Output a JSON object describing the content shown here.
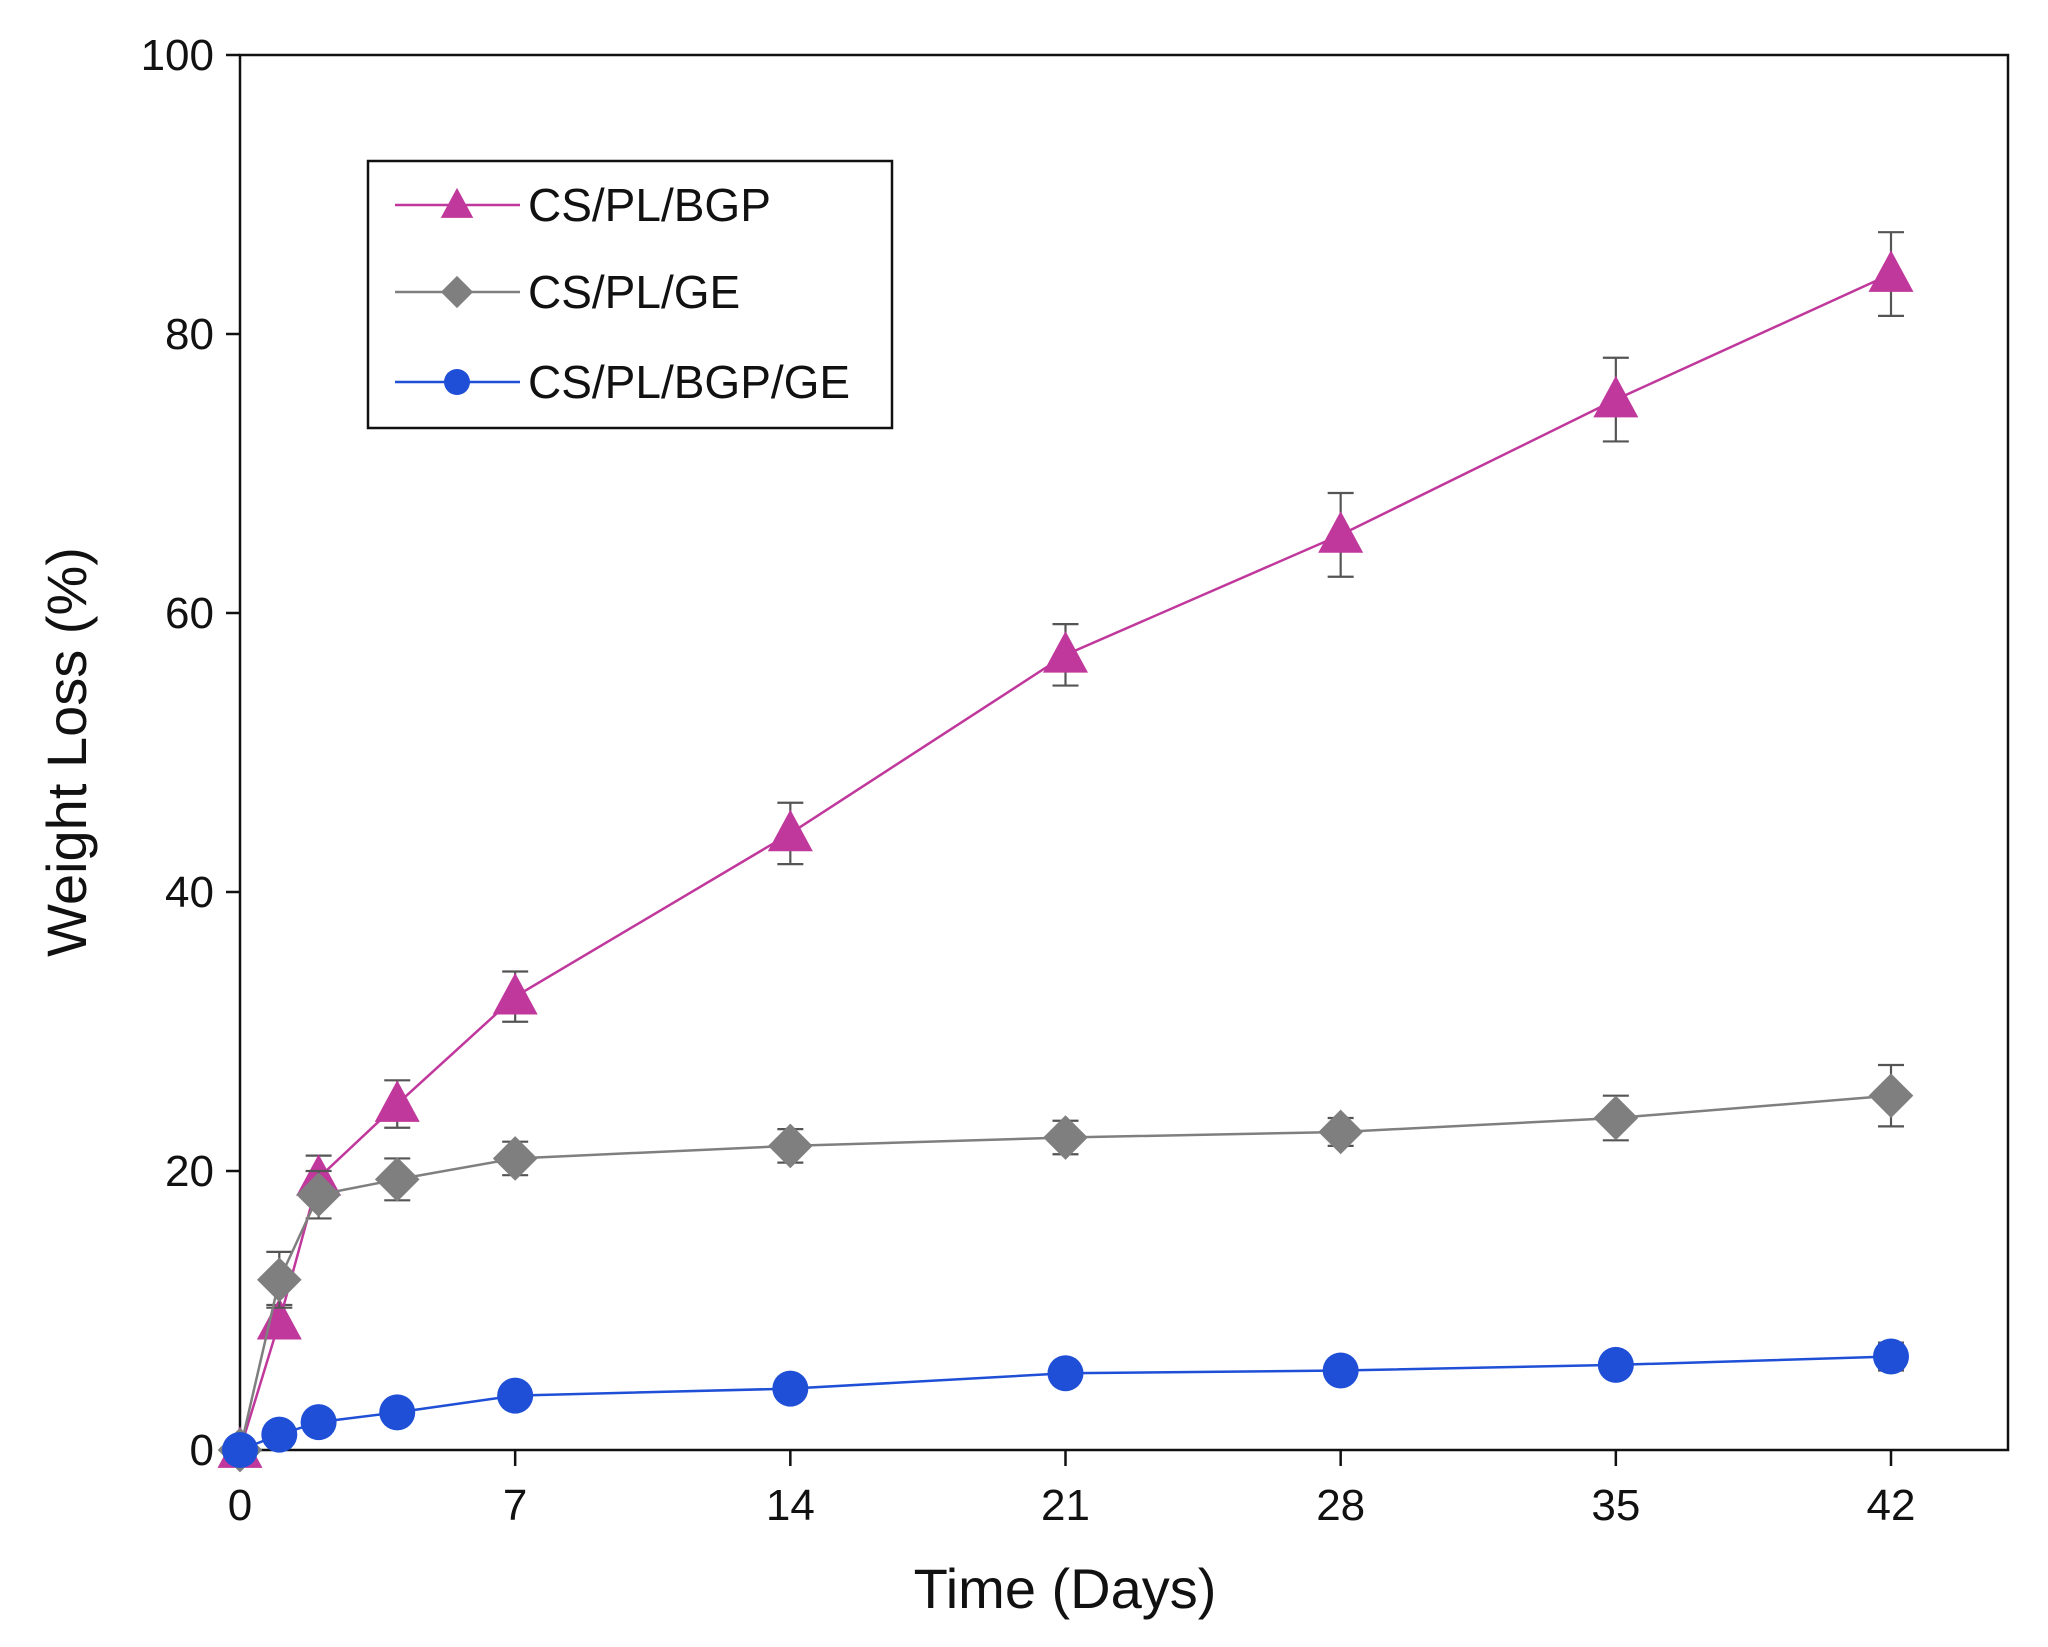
{
  "chart_data": {
    "type": "line",
    "title": "",
    "xlabel": "Time (Days)",
    "ylabel": "Weight Loss (%)",
    "xlim": [
      0,
      44.5
    ],
    "ylim": [
      0,
      100
    ],
    "x_ticks": [
      0,
      7,
      14,
      21,
      28,
      35,
      42
    ],
    "y_ticks": [
      0,
      20,
      40,
      60,
      80,
      100
    ],
    "grid": false,
    "legend_position": "top-left",
    "series": [
      {
        "name": "CS/PL/BGP",
        "color": "#c0389c",
        "marker": "triangle",
        "x": [
          0,
          1,
          2,
          4,
          7,
          14,
          21,
          28,
          35,
          42
        ],
        "y": [
          0,
          9.2,
          19.5,
          24.8,
          32.5,
          44.2,
          57.0,
          65.6,
          75.3,
          84.3
        ],
        "error": [
          0,
          1.2,
          1.6,
          1.7,
          1.8,
          2.2,
          2.2,
          3.0,
          3.0,
          3.0
        ]
      },
      {
        "name": "CS/PL/GE",
        "color": "#7f7f7f",
        "marker": "diamond",
        "x": [
          0,
          1,
          2,
          4,
          7,
          14,
          21,
          28,
          35,
          42
        ],
        "y": [
          0,
          12.2,
          18.3,
          19.4,
          20.9,
          21.8,
          22.4,
          22.8,
          23.8,
          25.4
        ],
        "error": [
          0,
          2.0,
          1.7,
          1.5,
          1.2,
          1.2,
          1.2,
          1.0,
          1.6,
          2.2
        ]
      },
      {
        "name": "CS/PL/BGP/GE",
        "color": "#1f4fd6",
        "marker": "circle",
        "x": [
          0,
          1,
          2,
          4,
          7,
          14,
          21,
          28,
          35,
          42
        ],
        "y": [
          0,
          1.1,
          2.0,
          2.7,
          3.9,
          4.4,
          5.5,
          5.7,
          6.1,
          6.7
        ],
        "error": [
          0,
          0,
          0,
          0,
          0,
          0,
          0,
          0,
          0,
          1.0
        ]
      }
    ]
  }
}
